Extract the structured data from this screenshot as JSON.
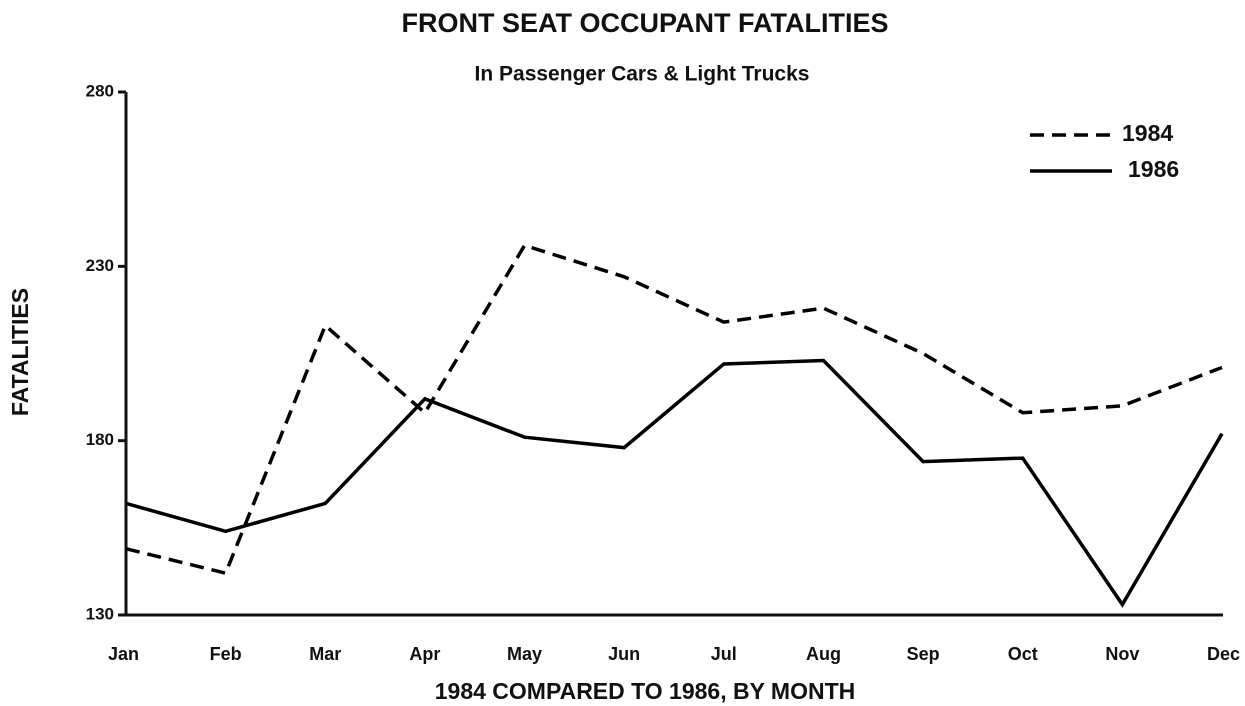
{
  "chart_data": {
    "type": "line",
    "title": "FRONT SEAT OCCUPANT FATALITIES",
    "subtitle": "In Passenger Cars & Light Trucks",
    "x_label": "1984 COMPARED TO 1986, BY MONTH",
    "y_label": "FATALITIES",
    "categories": [
      "Jan",
      "Feb",
      "Mar",
      "Apr",
      "May",
      "Jun",
      "Jul",
      "Aug",
      "Sep",
      "Oct",
      "Nov",
      "Dec"
    ],
    "series": [
      {
        "name": "1984",
        "color": "#000000",
        "style": "dashed",
        "values": [
          149,
          142,
          213,
          188,
          236,
          227,
          214,
          218,
          205,
          188,
          190,
          201
        ]
      },
      {
        "name": "1986",
        "color": "#000000",
        "style": "solid",
        "values": [
          162,
          154,
          162,
          192,
          181,
          178,
          202,
          203,
          174,
          175,
          133,
          182
        ]
      }
    ],
    "ylim": [
      130,
      280
    ],
    "yticks": [
      130,
      180,
      230,
      280
    ],
    "grid": false,
    "legend": "upper right"
  }
}
